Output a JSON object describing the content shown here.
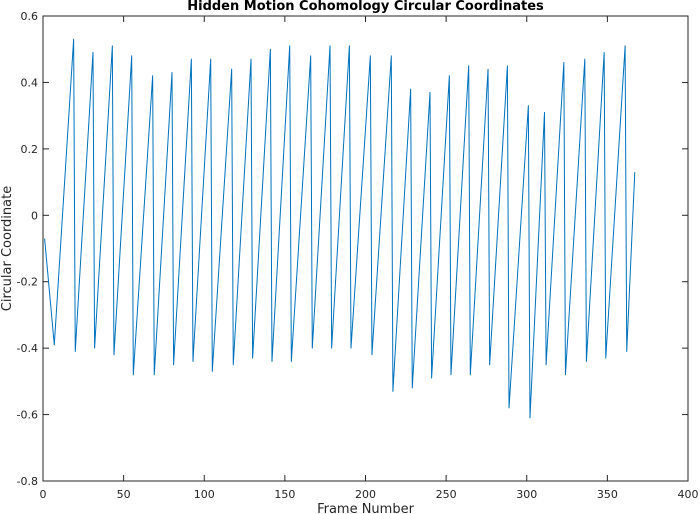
{
  "chart_data": {
    "type": "line",
    "title": "Hidden Motion Cohomology Circular Coordinates",
    "xlabel": "Frame Number",
    "ylabel": "Circular Coordinate",
    "xlim": [
      0,
      400
    ],
    "ylim": [
      -0.8,
      0.6
    ],
    "xticks": [
      0,
      50,
      100,
      150,
      200,
      250,
      300,
      350,
      400
    ],
    "yticks": [
      -0.8,
      -0.6,
      -0.4,
      -0.2,
      0,
      0.2,
      0.4,
      0.6
    ],
    "xtick_labels": [
      "0",
      "50",
      "100",
      "150",
      "200",
      "250",
      "300",
      "350",
      "400"
    ],
    "ytick_labels": [
      "-0.8",
      "-0.6",
      "-0.4",
      "-0.2",
      "0",
      "0.2",
      "0.4",
      "0.6"
    ],
    "grid": false,
    "line_color": "#0072bd",
    "series": [
      {
        "x": [
          1,
          7,
          19,
          20,
          31,
          32,
          43,
          44,
          55,
          56,
          68,
          69,
          80,
          81,
          92,
          93,
          104,
          105,
          117,
          118,
          129,
          130,
          141,
          142,
          153,
          154,
          166,
          167,
          178,
          179,
          190,
          191,
          203,
          204,
          216,
          217,
          228,
          229,
          240,
          241,
          252,
          253,
          264,
          265,
          276,
          277,
          288,
          289,
          301,
          302,
          311,
          312,
          323,
          324,
          336,
          337,
          348,
          349,
          361,
          362,
          367
        ],
        "y": [
          -0.07,
          -0.39,
          0.53,
          -0.41,
          0.49,
          -0.4,
          0.51,
          -0.42,
          0.48,
          -0.48,
          0.42,
          -0.48,
          0.43,
          -0.45,
          0.47,
          -0.44,
          0.47,
          -0.47,
          0.44,
          -0.45,
          0.47,
          -0.43,
          0.5,
          -0.44,
          0.51,
          -0.44,
          0.48,
          -0.4,
          0.51,
          -0.4,
          0.51,
          -0.4,
          0.48,
          -0.42,
          0.48,
          -0.53,
          0.38,
          -0.52,
          0.37,
          -0.49,
          0.42,
          -0.48,
          0.45,
          -0.48,
          0.44,
          -0.45,
          0.45,
          -0.58,
          0.33,
          -0.61,
          0.31,
          -0.45,
          0.46,
          -0.48,
          0.47,
          -0.44,
          0.49,
          -0.43,
          0.51,
          -0.41,
          0.13
        ]
      }
    ]
  }
}
